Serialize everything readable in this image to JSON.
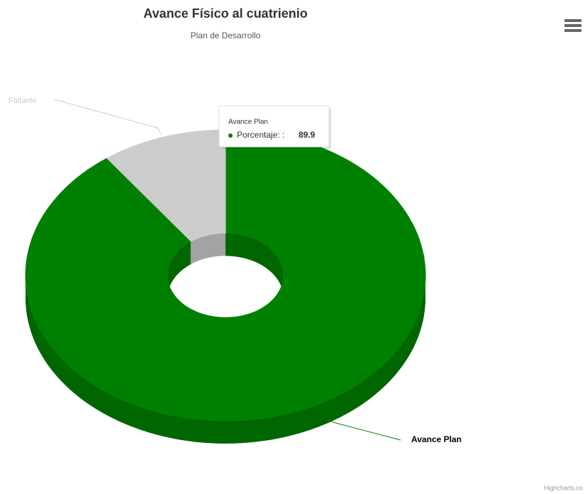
{
  "chart_data": {
    "type": "pie",
    "title": "Avance Físico al cuatrienio",
    "subtitle": "Plan de Desarrollo",
    "categories": [
      "Avance Plan",
      "Faltante"
    ],
    "values": [
      89.9,
      10.1
    ],
    "colors": [
      "#008000",
      "#cccccc"
    ],
    "tooltip": {
      "title": "Avance Plan",
      "label": "Porcentaje: :"
    },
    "credits": "Highcharts.co"
  }
}
